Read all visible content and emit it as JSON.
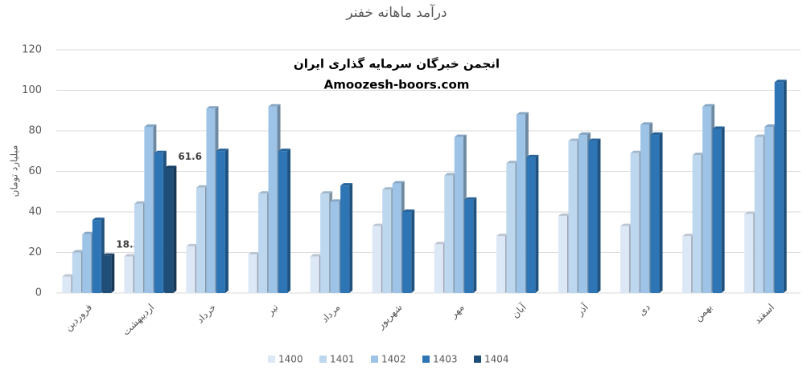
{
  "chart_data": {
    "type": "bar3d",
    "title": "درآمد ماهانه خفنر",
    "watermark": [
      "انجمن خبرگان سرمایه گذاری ایران",
      "Amoozesh-boors.com"
    ],
    "y_label": "میلیارد تومان",
    "categories": [
      "فروردین",
      "اردیبهشت",
      "خرداد",
      "تیر",
      "مرداد",
      "شهریور",
      "مهر",
      "آبان",
      "آذر",
      "دی",
      "بهمن",
      "اسفند"
    ],
    "series": [
      {
        "name": "1400",
        "color": "#dde8f7",
        "values": [
          8,
          18,
          23,
          19,
          18,
          33,
          24,
          28,
          38,
          33,
          28,
          39
        ]
      },
      {
        "name": "1401",
        "color": "#bdd7ee",
        "values": [
          20,
          44,
          52,
          49,
          49,
          51,
          58,
          64,
          75,
          69,
          68,
          77
        ]
      },
      {
        "name": "1402",
        "color": "#9dc3e6",
        "values": [
          29,
          82,
          91,
          92,
          45,
          54,
          77,
          88,
          78,
          83,
          92,
          82
        ]
      },
      {
        "name": "1403",
        "color": "#2e75b6",
        "values": [
          36,
          69,
          70,
          70,
          53,
          40,
          46,
          67,
          75,
          78,
          81,
          104
        ]
      },
      {
        "name": "1404",
        "color": "#1f4e79",
        "values": [
          18.3,
          61.6,
          null,
          null,
          null,
          null,
          null,
          null,
          null,
          null,
          null,
          null
        ],
        "data_labels": true
      }
    ],
    "ylim": [
      0,
      120
    ],
    "yticks": [
      0,
      20,
      40,
      60,
      80,
      100,
      120
    ],
    "grid": true,
    "legend": "bottom"
  }
}
